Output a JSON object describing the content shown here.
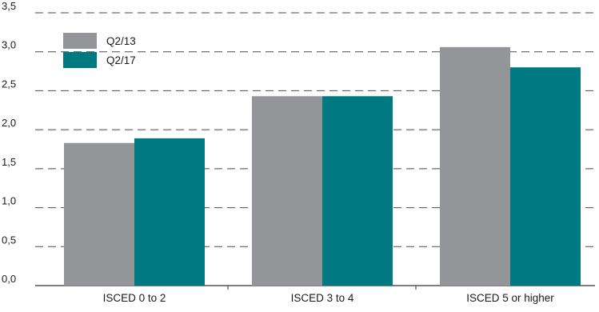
{
  "chart_data": {
    "type": "bar",
    "categories": [
      "ISCED 0 to 2",
      "ISCED 3 to 4",
      "ISCED 5 or higher"
    ],
    "series": [
      {
        "name": "Q2/13",
        "values": [
          1.83,
          2.43,
          3.06
        ],
        "color": "#939598"
      },
      {
        "name": "Q2/17",
        "values": [
          1.89,
          2.43,
          2.8
        ],
        "color": "#007a80"
      }
    ],
    "y_ticks": [
      "0,0",
      "0,5",
      "1,0",
      "1,5",
      "2,0",
      "2,5",
      "3,0",
      "3,5"
    ],
    "ylim": [
      0,
      3.5
    ],
    "y_step": 0.5,
    "grid": true,
    "grid_style": "dashed",
    "legend_position": "top-left",
    "title": "",
    "xlabel": "",
    "ylabel": ""
  }
}
